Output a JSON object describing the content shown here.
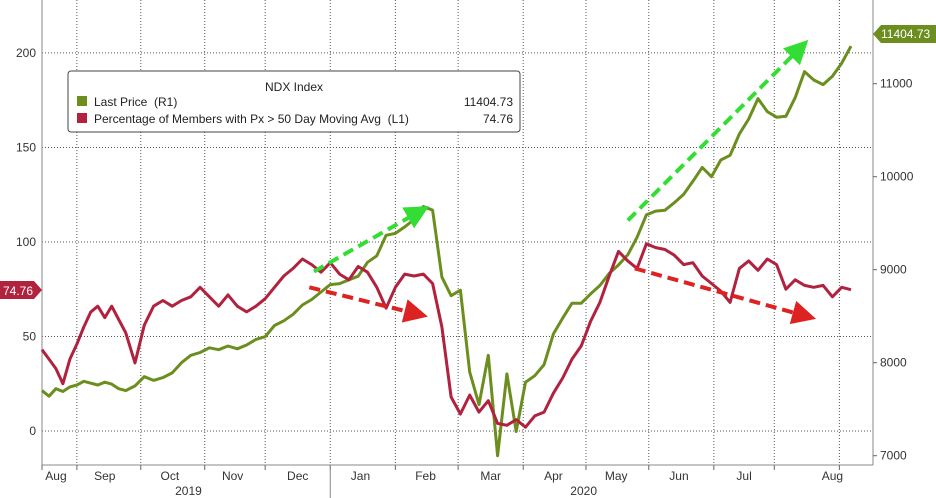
{
  "chart_data": {
    "type": "line",
    "legend": {
      "title": "NDX Index",
      "placement": "top-left",
      "items": [
        {
          "label": "Last Price  (R1)",
          "value": "11404.73",
          "color": "#6b8e1e"
        },
        {
          "label": "Percentage of Members with Px > 50 Day Moving Avg  (L1)",
          "value": "74.76",
          "color": "#b0223e"
        }
      ]
    },
    "x_axis": {
      "months": [
        "Aug",
        "Sep",
        "Oct",
        "Nov",
        "Dec",
        "Jan",
        "Feb",
        "Mar",
        "Apr",
        "May",
        "Jun",
        "Jul",
        "Aug"
      ],
      "years": [
        "2019",
        "2020"
      ]
    },
    "left_axis": {
      "ticks": [
        "0",
        "50",
        "100",
        "150",
        "200"
      ],
      "range": [
        -18,
        228
      ]
    },
    "right_axis": {
      "ticks": [
        "7000",
        "8000",
        "9000",
        "10000",
        "11000"
      ],
      "range": [
        6900,
        11900
      ]
    },
    "grid": true,
    "badges": {
      "left": "74.76",
      "right": "11404.73"
    },
    "series": [
      {
        "name": "Last Price  (R1)",
        "axis": "right",
        "color": "#6b8e1e",
        "points": [
          [
            0,
            7700
          ],
          [
            0.3,
            7640
          ],
          [
            0.6,
            7720
          ],
          [
            0.9,
            7690
          ],
          [
            1.2,
            7740
          ],
          [
            1.5,
            7760
          ],
          [
            1.8,
            7800
          ],
          [
            2.1,
            7780
          ],
          [
            2.4,
            7760
          ],
          [
            2.7,
            7790
          ],
          [
            3,
            7770
          ],
          [
            3.3,
            7720
          ],
          [
            3.6,
            7700
          ],
          [
            4.0,
            7750
          ],
          [
            4.4,
            7850
          ],
          [
            4.8,
            7810
          ],
          [
            5.2,
            7840
          ],
          [
            5.6,
            7890
          ],
          [
            6.0,
            8000
          ],
          [
            6.4,
            8080
          ],
          [
            6.8,
            8110
          ],
          [
            7.2,
            8160
          ],
          [
            7.6,
            8140
          ],
          [
            8.0,
            8180
          ],
          [
            8.4,
            8150
          ],
          [
            8.8,
            8190
          ],
          [
            9.2,
            8250
          ],
          [
            9.6,
            8280
          ],
          [
            10.0,
            8400
          ],
          [
            10.4,
            8450
          ],
          [
            10.8,
            8520
          ],
          [
            11.2,
            8620
          ],
          [
            11.6,
            8680
          ],
          [
            12.0,
            8760
          ],
          [
            12.4,
            8840
          ],
          [
            12.8,
            8850
          ],
          [
            13.2,
            8890
          ],
          [
            13.6,
            8930
          ],
          [
            14.0,
            9080
          ],
          [
            14.4,
            9150
          ],
          [
            14.8,
            9370
          ],
          [
            15.2,
            9390
          ],
          [
            15.6,
            9460
          ],
          [
            16.0,
            9540
          ],
          [
            16.4,
            9680
          ],
          [
            16.8,
            9640
          ],
          [
            17.2,
            8920
          ],
          [
            17.6,
            8720
          ],
          [
            18.0,
            8780
          ],
          [
            18.4,
            7900
          ],
          [
            18.8,
            7550
          ],
          [
            19.2,
            8080
          ],
          [
            19.6,
            7000
          ],
          [
            20.0,
            7880
          ],
          [
            20.4,
            7260
          ],
          [
            20.8,
            7790
          ],
          [
            21.2,
            7860
          ],
          [
            21.6,
            7980
          ],
          [
            22.0,
            8310
          ],
          [
            22.4,
            8480
          ],
          [
            22.8,
            8640
          ],
          [
            23.2,
            8640
          ],
          [
            23.6,
            8740
          ],
          [
            24.0,
            8830
          ],
          [
            24.4,
            8960
          ],
          [
            24.8,
            9050
          ],
          [
            25.2,
            9160
          ],
          [
            25.6,
            9350
          ],
          [
            26.0,
            9590
          ],
          [
            26.4,
            9630
          ],
          [
            26.8,
            9640
          ],
          [
            27.2,
            9720
          ],
          [
            27.6,
            9810
          ],
          [
            28.0,
            9950
          ],
          [
            28.4,
            10100
          ],
          [
            28.8,
            10000
          ],
          [
            29.2,
            10180
          ],
          [
            29.6,
            10230
          ],
          [
            30.0,
            10460
          ],
          [
            30.4,
            10620
          ],
          [
            30.8,
            10840
          ],
          [
            31.2,
            10700
          ],
          [
            31.6,
            10640
          ],
          [
            32.0,
            10650
          ],
          [
            32.4,
            10850
          ],
          [
            32.8,
            11130
          ],
          [
            33.2,
            11040
          ],
          [
            33.6,
            10990
          ],
          [
            34.0,
            11080
          ],
          [
            34.4,
            11220
          ],
          [
            34.8,
            11404.73
          ]
        ]
      },
      {
        "name": "Percentage of Members with Px > 50 Day Moving Avg  (L1)",
        "axis": "left",
        "color": "#b0223e",
        "points": [
          [
            0,
            43
          ],
          [
            0.3,
            38
          ],
          [
            0.6,
            33
          ],
          [
            0.9,
            25
          ],
          [
            1.2,
            38
          ],
          [
            1.5,
            46
          ],
          [
            1.8,
            55
          ],
          [
            2.1,
            63
          ],
          [
            2.4,
            66
          ],
          [
            2.7,
            60
          ],
          [
            3,
            66
          ],
          [
            3.3,
            59
          ],
          [
            3.6,
            52
          ],
          [
            4.0,
            36
          ],
          [
            4.4,
            56
          ],
          [
            4.8,
            66
          ],
          [
            5.2,
            69
          ],
          [
            5.6,
            66
          ],
          [
            6.0,
            69
          ],
          [
            6.4,
            71
          ],
          [
            6.8,
            76
          ],
          [
            7.2,
            71
          ],
          [
            7.6,
            66
          ],
          [
            8.0,
            72
          ],
          [
            8.4,
            66
          ],
          [
            8.8,
            63
          ],
          [
            9.2,
            66
          ],
          [
            9.6,
            70
          ],
          [
            10.0,
            76
          ],
          [
            10.4,
            82
          ],
          [
            10.8,
            86
          ],
          [
            11.2,
            91
          ],
          [
            11.6,
            88
          ],
          [
            12.0,
            84
          ],
          [
            12.4,
            89
          ],
          [
            12.8,
            83
          ],
          [
            13.2,
            80
          ],
          [
            13.6,
            87
          ],
          [
            14.0,
            84
          ],
          [
            14.4,
            76
          ],
          [
            14.8,
            65
          ],
          [
            15.2,
            76
          ],
          [
            15.6,
            83
          ],
          [
            16.0,
            82
          ],
          [
            16.4,
            83
          ],
          [
            16.8,
            78
          ],
          [
            17.2,
            55
          ],
          [
            17.6,
            18
          ],
          [
            18.0,
            9
          ],
          [
            18.4,
            19
          ],
          [
            18.8,
            10
          ],
          [
            19.2,
            16
          ],
          [
            19.6,
            4
          ],
          [
            20.0,
            3
          ],
          [
            20.4,
            6
          ],
          [
            20.8,
            2
          ],
          [
            21.2,
            8
          ],
          [
            21.6,
            10
          ],
          [
            22.0,
            20
          ],
          [
            22.4,
            28
          ],
          [
            22.8,
            38
          ],
          [
            23.2,
            45
          ],
          [
            23.6,
            58
          ],
          [
            24.0,
            68
          ],
          [
            24.4,
            82
          ],
          [
            24.8,
            95
          ],
          [
            25.2,
            90
          ],
          [
            25.6,
            86
          ],
          [
            26.0,
            99
          ],
          [
            26.4,
            97
          ],
          [
            26.8,
            96
          ],
          [
            27.2,
            93
          ],
          [
            27.6,
            88
          ],
          [
            28.0,
            89
          ],
          [
            28.4,
            82
          ],
          [
            28.8,
            78
          ],
          [
            29.2,
            74
          ],
          [
            29.6,
            68
          ],
          [
            30.0,
            86
          ],
          [
            30.4,
            90
          ],
          [
            30.8,
            85
          ],
          [
            31.2,
            91
          ],
          [
            31.6,
            88
          ],
          [
            32.0,
            75
          ],
          [
            32.4,
            80
          ],
          [
            32.8,
            77
          ],
          [
            33.2,
            76
          ],
          [
            33.6,
            77
          ],
          [
            34.0,
            71
          ],
          [
            34.4,
            76
          ],
          [
            34.8,
            74.76
          ]
        ]
      }
    ],
    "annotations": [
      {
        "type": "dashed-arrow",
        "color": "#33dd33",
        "from": [
          11.7,
          8980
        ],
        "to": [
          16.2,
          9620
        ]
      },
      {
        "type": "dashed-arrow",
        "color": "#dd2222",
        "from": [
          11.5,
          76
        ],
        "to": [
          16.1,
          62
        ]
      },
      {
        "type": "dashed-arrow",
        "color": "#33dd33",
        "from": [
          25.2,
          9530
        ],
        "to": [
          32.6,
          11380
        ]
      },
      {
        "type": "dashed-arrow",
        "color": "#dd2222",
        "from": [
          25.5,
          86
        ],
        "to": [
          32.8,
          61
        ]
      }
    ]
  }
}
